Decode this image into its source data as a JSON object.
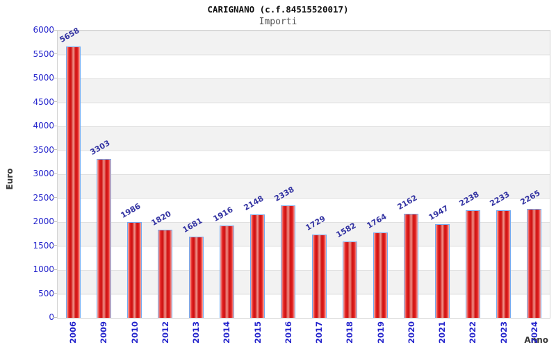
{
  "chart_data": {
    "type": "bar",
    "title": "CARIGNANO (c.f.84515520017)",
    "subtitle": "Importi",
    "xlabel": "Anno",
    "ylabel": "Euro",
    "categories": [
      "2006",
      "2009",
      "2010",
      "2012",
      "2013",
      "2014",
      "2015",
      "2016",
      "2017",
      "2018",
      "2019",
      "2020",
      "2021",
      "2022",
      "2023",
      "2024"
    ],
    "values": [
      5658,
      3303,
      1986,
      1820,
      1681,
      1916,
      2148,
      2338,
      1729,
      1582,
      1764,
      2162,
      1947,
      2238,
      2233,
      2265
    ],
    "ylim": [
      0,
      6000
    ],
    "yticks": [
      0,
      500,
      1000,
      1500,
      2000,
      2500,
      3000,
      3500,
      4000,
      4500,
      5000,
      5500,
      6000
    ],
    "grid": "horizontal bands every 500, alternating gray/white",
    "legend_position": "none",
    "colors": {
      "bar_fill": "#e42424",
      "bar_dark": "#cd0f0f",
      "bar_center": "#f1938a",
      "bar_edge": "#f7b3ab",
      "bar_border": "#74aaf0",
      "tick_label": "#2323cc",
      "value_label": "#3333a2",
      "band_gray": "#f2f2f2",
      "band_white": "#ffffff",
      "grid_line": "#e0e0e0",
      "axis_text": "#3a3a3a"
    }
  }
}
